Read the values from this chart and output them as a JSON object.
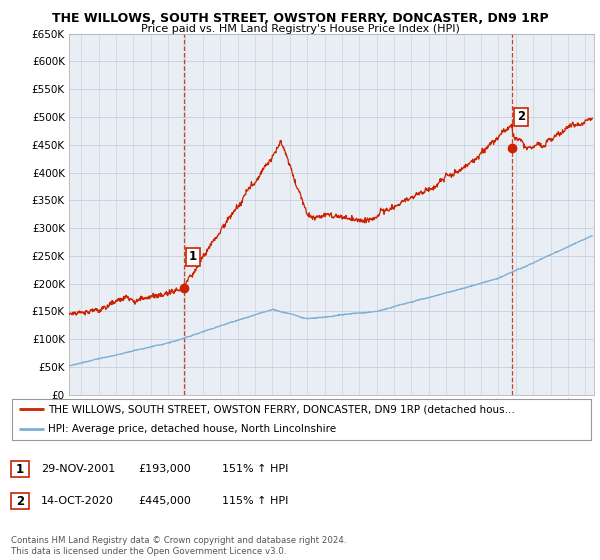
{
  "title": "THE WILLOWS, SOUTH STREET, OWSTON FERRY, DONCASTER, DN9 1RP",
  "subtitle": "Price paid vs. HM Land Registry's House Price Index (HPI)",
  "ylim": [
    0,
    650000
  ],
  "yticks": [
    0,
    50000,
    100000,
    150000,
    200000,
    250000,
    300000,
    350000,
    400000,
    450000,
    500000,
    550000,
    600000,
    650000
  ],
  "xlim_start": 1995.3,
  "xlim_end": 2025.5,
  "hpi_color": "#7ab0d4",
  "price_color": "#cc2200",
  "vline_color": "#cc2200",
  "bg_plot_color": "#e8eef4",
  "sale1_x": 2001.91,
  "sale1_y": 193000,
  "sale2_x": 2020.79,
  "sale2_y": 445000,
  "legend_label_red": "THE WILLOWS, SOUTH STREET, OWSTON FERRY, DONCASTER, DN9 1RP (detached hous…",
  "legend_label_blue": "HPI: Average price, detached house, North Lincolnshire",
  "table_row1": [
    "1",
    "29-NOV-2001",
    "£193,000",
    "151% ↑ HPI"
  ],
  "table_row2": [
    "2",
    "14-OCT-2020",
    "£445,000",
    "115% ↑ HPI"
  ],
  "footer": "Contains HM Land Registry data © Crown copyright and database right 2024.\nThis data is licensed under the Open Government Licence v3.0.",
  "bg_color": "#ffffff",
  "grid_color": "#c8d4e0"
}
